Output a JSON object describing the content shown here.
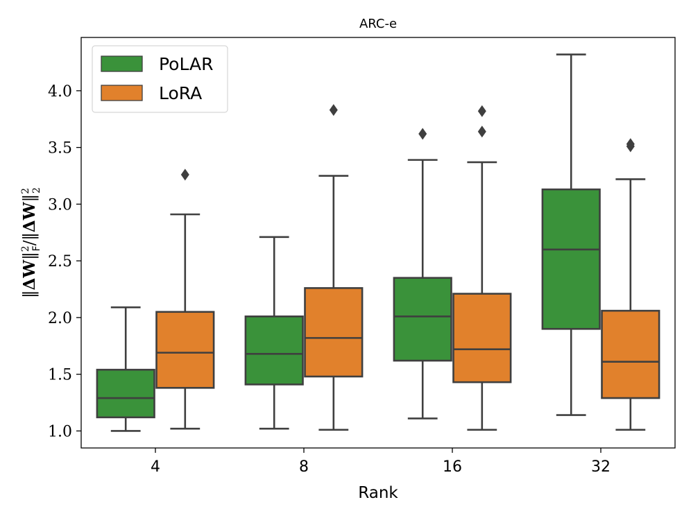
{
  "chart_data": {
    "type": "boxplot",
    "title": "ARC-e",
    "xlabel": "Rank",
    "ylabel": "||ΔW||_F² / ||ΔW||_2²",
    "ylabel_parts": {
      "num": "ΔW",
      "num_sub": "F",
      "sep": "/",
      "den": "ΔW",
      "den_sub": "2",
      "sup": "2"
    },
    "categories": [
      "4",
      "8",
      "16",
      "32"
    ],
    "ylim": [
      0.85,
      4.47
    ],
    "yticks": [
      1.0,
      1.5,
      2.0,
      2.5,
      3.0,
      3.5,
      4.0
    ],
    "ytick_labels": [
      "1.0",
      "1.5",
      "2.0",
      "2.5",
      "3.0",
      "3.5",
      "4.0"
    ],
    "grid": false,
    "legend": {
      "placement": "top-left",
      "entries": [
        "PoLAR",
        "LoRA"
      ]
    },
    "series": [
      {
        "name": "PoLAR",
        "color": "#3a923a",
        "boxes": [
          {
            "whisker_low": 1.0,
            "q1": 1.12,
            "median": 1.29,
            "q3": 1.54,
            "whisker_high": 2.09,
            "outliers": []
          },
          {
            "whisker_low": 1.02,
            "q1": 1.41,
            "median": 1.68,
            "q3": 2.01,
            "whisker_high": 2.71,
            "outliers": []
          },
          {
            "whisker_low": 1.11,
            "q1": 1.62,
            "median": 2.01,
            "q3": 2.35,
            "whisker_high": 3.39,
            "outliers": [
              3.62
            ]
          },
          {
            "whisker_low": 1.14,
            "q1": 1.9,
            "median": 2.6,
            "q3": 3.13,
            "whisker_high": 4.32,
            "outliers": []
          }
        ]
      },
      {
        "name": "LoRA",
        "color": "#e1812c",
        "boxes": [
          {
            "whisker_low": 1.02,
            "q1": 1.38,
            "median": 1.69,
            "q3": 2.05,
            "whisker_high": 2.91,
            "outliers": [
              3.26
            ]
          },
          {
            "whisker_low": 1.01,
            "q1": 1.48,
            "median": 1.82,
            "q3": 2.26,
            "whisker_high": 3.25,
            "outliers": [
              3.83
            ]
          },
          {
            "whisker_low": 1.01,
            "q1": 1.43,
            "median": 1.72,
            "q3": 2.21,
            "whisker_high": 3.37,
            "outliers": [
              3.64,
              3.82
            ]
          },
          {
            "whisker_low": 1.01,
            "q1": 1.29,
            "median": 1.61,
            "q3": 2.06,
            "whisker_high": 3.22,
            "outliers": [
              3.51,
              3.53
            ]
          }
        ]
      }
    ],
    "style": {
      "line_color": "#3f3f3f",
      "axis_color": "#000000"
    }
  }
}
